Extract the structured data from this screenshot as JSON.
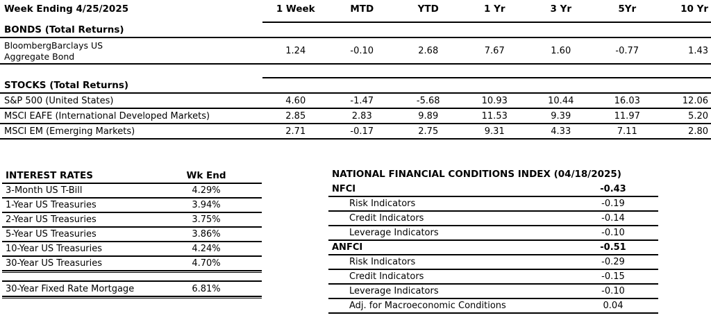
{
  "report": {
    "week_ending_label": "Week Ending 4/25/2025",
    "columns": [
      "1 Week",
      "MTD",
      "YTD",
      "1 Yr",
      "3 Yr",
      "5Yr",
      "10 Yr"
    ],
    "bonds": {
      "section_title": "BONDS (Total Returns)",
      "rows": [
        {
          "label_line_1": "BloombergBarclays US",
          "label_line_2": "Aggregate Bond",
          "values": [
            "1.24",
            "-0.10",
            "2.68",
            "7.67",
            "1.60",
            "-0.77",
            "1.43"
          ]
        }
      ]
    },
    "stocks": {
      "section_title": "STOCKS (Total Returns)",
      "rows": [
        {
          "label": "S&P 500 (United States)",
          "values": [
            "4.60",
            "-1.47",
            "-5.68",
            "10.93",
            "10.44",
            "16.03",
            "12.06"
          ]
        },
        {
          "label": "MSCI EAFE (International Developed Markets)",
          "values": [
            "2.85",
            "2.83",
            "9.89",
            "11.53",
            "9.39",
            "11.97",
            "5.20"
          ]
        },
        {
          "label": "MSCI EM (Emerging Markets)",
          "values": [
            "2.71",
            "-0.17",
            "2.75",
            "9.31",
            "4.33",
            "7.11",
            "2.80"
          ]
        }
      ]
    }
  },
  "interest_rates": {
    "title": "INTEREST RATES",
    "value_header": "Wk End",
    "rows": [
      {
        "label": "3-Month US T-Bill",
        "value": "4.29%"
      },
      {
        "label": "1-Year US Treasuries",
        "value": "3.94%"
      },
      {
        "label": "2-Year US Treasuries",
        "value": "3.75%"
      },
      {
        "label": "5-Year US Treasuries",
        "value": "3.86%"
      },
      {
        "label": "10-Year US Treasuries",
        "value": "4.24%"
      },
      {
        "label": "30-Year US Treasuries",
        "value": "4.70%"
      }
    ],
    "mortgage": {
      "label": "30-Year Fixed Rate Mortgage",
      "value": "6.81%"
    }
  },
  "nfci": {
    "title": "NATIONAL FINANCIAL CONDITIONS INDEX (04/18/2025)",
    "rows": [
      {
        "label": "NFCI",
        "value": "-0.43"
      },
      {
        "label": "Risk Indicators",
        "value": "-0.19"
      },
      {
        "label": "Credit Indicators",
        "value": "-0.14"
      },
      {
        "label": "Leverage Indicators",
        "value": "-0.10"
      },
      {
        "label": "ANFCI",
        "value": "-0.51"
      },
      {
        "label": "Risk Indicators",
        "value": "-0.29"
      },
      {
        "label": "Credit Indicators",
        "value": "-0.15"
      },
      {
        "label": "Leverage Indicators",
        "value": "-0.10"
      },
      {
        "label": "Adj. for Macroeconomic Conditions",
        "value": "0.04"
      }
    ]
  },
  "colors": {
    "background": "#ffffff",
    "text": "#000000",
    "rule": "#000000"
  }
}
